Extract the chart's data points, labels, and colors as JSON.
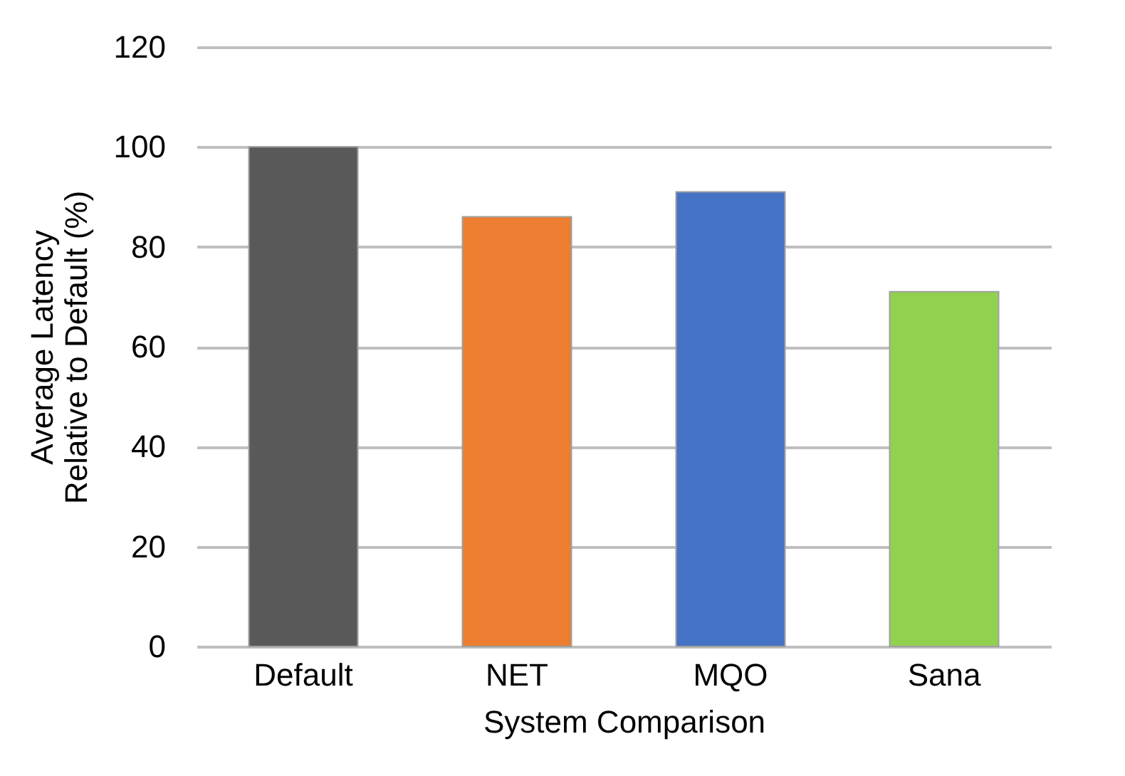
{
  "chart_data": {
    "type": "bar",
    "xlabel": "System Comparison",
    "ylabel": "Average Latency\nRelative to Default (%)",
    "categories": [
      "Default",
      "NET",
      "MQO",
      "Sana"
    ],
    "values": [
      100,
      86,
      91,
      71
    ],
    "colors": [
      "#595959",
      "#ed7d31",
      "#4472c4",
      "#92d050"
    ],
    "ylim": [
      0,
      120
    ],
    "yticks": [
      0,
      20,
      40,
      60,
      80,
      100,
      120
    ],
    "grid": "y"
  }
}
